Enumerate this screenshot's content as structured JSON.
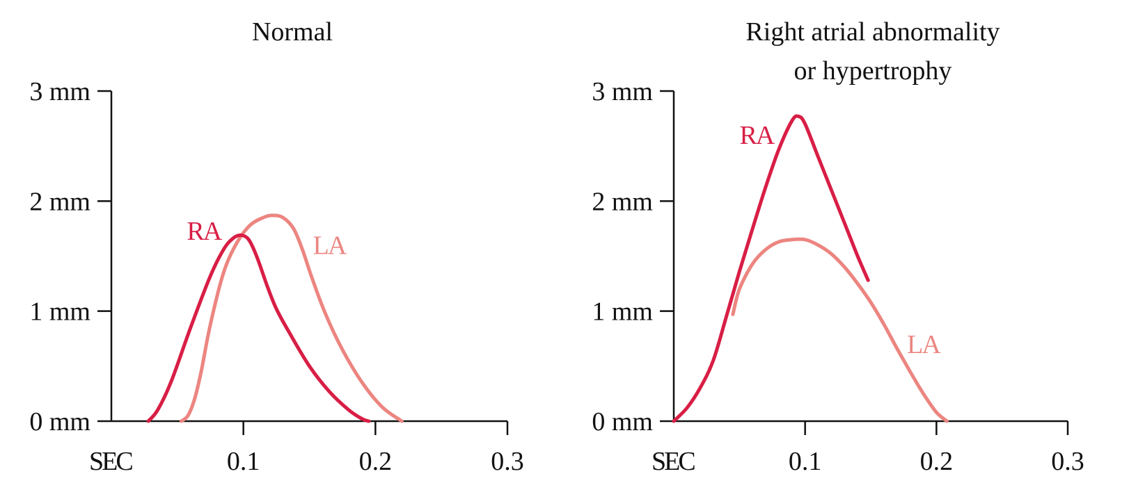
{
  "chart_data": [
    {
      "type": "line",
      "title": "Normal",
      "xlabel": "",
      "ylabel": "",
      "xlim": [
        0,
        0.3
      ],
      "ylim": [
        0,
        3
      ],
      "x_ticks": [
        {
          "value": 0,
          "label": "SEC"
        },
        {
          "value": 0.1,
          "label": "0.1"
        },
        {
          "value": 0.2,
          "label": "0.2"
        },
        {
          "value": 0.3,
          "label": "0.3"
        }
      ],
      "y_ticks": [
        {
          "value": 0,
          "label": "0 mm"
        },
        {
          "value": 1,
          "label": "1 mm"
        },
        {
          "value": 2,
          "label": "2 mm"
        },
        {
          "value": 3,
          "label": "3 mm"
        }
      ],
      "grid": false,
      "series": [
        {
          "name": "RA",
          "color": "#d81e45",
          "points": [
            [
              0.028,
              0
            ],
            [
              0.035,
              0.1
            ],
            [
              0.045,
              0.35
            ],
            [
              0.06,
              0.85
            ],
            [
              0.075,
              1.32
            ],
            [
              0.085,
              1.56
            ],
            [
              0.092,
              1.66
            ],
            [
              0.098,
              1.69
            ],
            [
              0.104,
              1.65
            ],
            [
              0.11,
              1.5
            ],
            [
              0.118,
              1.23
            ],
            [
              0.125,
              1.02
            ],
            [
              0.135,
              0.8
            ],
            [
              0.15,
              0.5
            ],
            [
              0.165,
              0.27
            ],
            [
              0.18,
              0.1
            ],
            [
              0.19,
              0.02
            ],
            [
              0.195,
              0
            ]
          ],
          "label_x": 0.07,
          "label_y": 1.65
        },
        {
          "name": "LA",
          "color": "#ec8580",
          "points": [
            [
              0.053,
              0
            ],
            [
              0.058,
              0.05
            ],
            [
              0.063,
              0.2
            ],
            [
              0.068,
              0.45
            ],
            [
              0.075,
              0.88
            ],
            [
              0.085,
              1.35
            ],
            [
              0.095,
              1.62
            ],
            [
              0.105,
              1.78
            ],
            [
              0.115,
              1.85
            ],
            [
              0.122,
              1.87
            ],
            [
              0.13,
              1.85
            ],
            [
              0.138,
              1.75
            ],
            [
              0.145,
              1.55
            ],
            [
              0.152,
              1.3
            ],
            [
              0.162,
              0.98
            ],
            [
              0.175,
              0.65
            ],
            [
              0.19,
              0.35
            ],
            [
              0.205,
              0.13
            ],
            [
              0.22,
              0
            ]
          ],
          "label_x": 0.165,
          "label_y": 1.52
        }
      ]
    },
    {
      "type": "line",
      "title": "Right atrial abnormality or hypertrophy",
      "title_lines": [
        "Right atrial abnormality",
        "or hypertrophy"
      ],
      "xlabel": "",
      "ylabel": "",
      "xlim": [
        0,
        0.3
      ],
      "ylim": [
        0,
        3
      ],
      "x_ticks": [
        {
          "value": 0,
          "label": "SEC"
        },
        {
          "value": 0.1,
          "label": "0.1"
        },
        {
          "value": 0.2,
          "label": "0.2"
        },
        {
          "value": 0.3,
          "label": "0.3"
        }
      ],
      "y_ticks": [
        {
          "value": 0,
          "label": "0 mm"
        },
        {
          "value": 1,
          "label": "1 mm"
        },
        {
          "value": 2,
          "label": "2 mm"
        },
        {
          "value": 3,
          "label": "3 mm"
        }
      ],
      "grid": false,
      "series": [
        {
          "name": "RA",
          "color": "#d81e45",
          "points": [
            [
              0,
              0
            ],
            [
              0.01,
              0.12
            ],
            [
              0.02,
              0.3
            ],
            [
              0.03,
              0.55
            ],
            [
              0.04,
              0.95
            ],
            [
              0.05,
              1.36
            ],
            [
              0.06,
              1.75
            ],
            [
              0.07,
              2.13
            ],
            [
              0.08,
              2.47
            ],
            [
              0.09,
              2.73
            ],
            [
              0.095,
              2.77
            ],
            [
              0.1,
              2.7
            ],
            [
              0.11,
              2.4
            ],
            [
              0.12,
              2.1
            ],
            [
              0.13,
              1.8
            ],
            [
              0.14,
              1.5
            ],
            [
              0.148,
              1.28
            ]
          ],
          "label_x": 0.063,
          "label_y": 2.52
        },
        {
          "name": "LA",
          "color": "#ec8580",
          "points": [
            [
              0.045,
              0.97
            ],
            [
              0.05,
              1.2
            ],
            [
              0.06,
              1.43
            ],
            [
              0.07,
              1.56
            ],
            [
              0.08,
              1.63
            ],
            [
              0.09,
              1.65
            ],
            [
              0.1,
              1.65
            ],
            [
              0.11,
              1.6
            ],
            [
              0.12,
              1.52
            ],
            [
              0.13,
              1.4
            ],
            [
              0.14,
              1.25
            ],
            [
              0.15,
              1.08
            ],
            [
              0.16,
              0.88
            ],
            [
              0.17,
              0.66
            ],
            [
              0.18,
              0.45
            ],
            [
              0.19,
              0.25
            ],
            [
              0.2,
              0.08
            ],
            [
              0.208,
              0
            ]
          ],
          "label_x": 0.19,
          "label_y": 0.62
        }
      ]
    }
  ]
}
